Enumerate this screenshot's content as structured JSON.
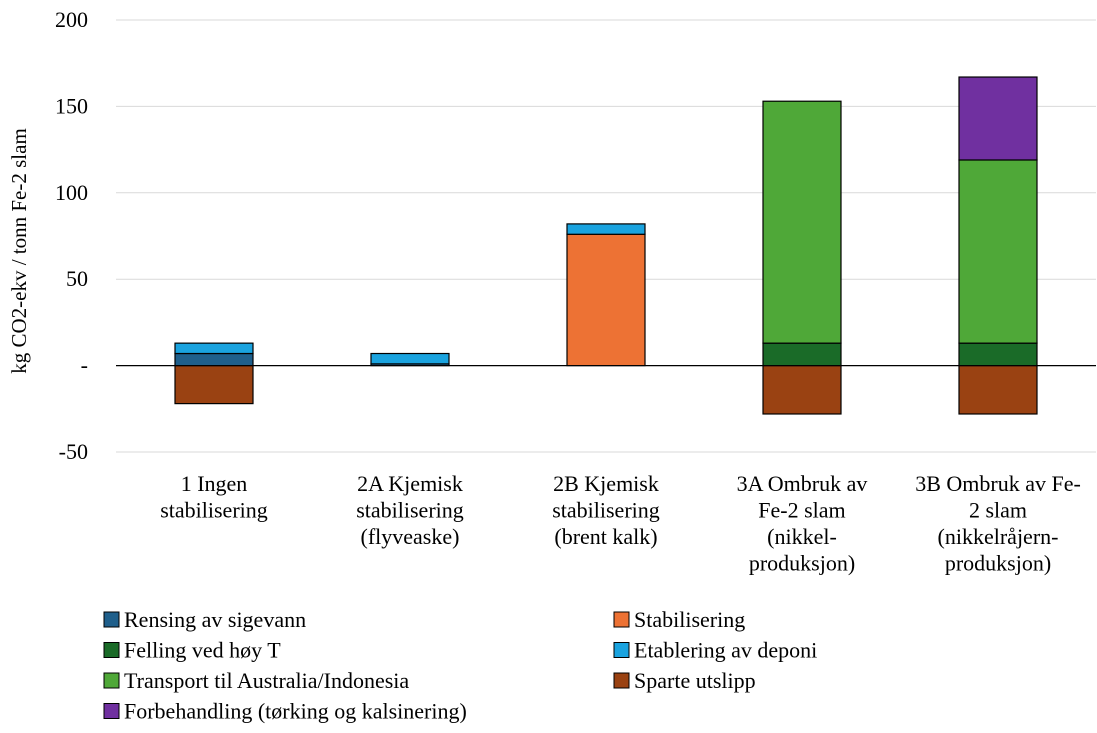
{
  "chart_data": {
    "type": "bar",
    "stacked": true,
    "title": "",
    "xlabel": "",
    "ylabel": "kg CO2-ekv / tonn Fe-2 slam",
    "ylim": [
      -50,
      200
    ],
    "yticks": [
      200,
      150,
      100,
      50,
      0,
      -50
    ],
    "ytick_labels": [
      "200",
      "150",
      "100",
      "50",
      "-",
      "-50"
    ],
    "grid": true,
    "legend_position": "bottom",
    "categories": [
      [
        "1 Ingen",
        "stabilisering"
      ],
      [
        "2A Kjemisk",
        "stabilisering",
        "(flyveaske)"
      ],
      [
        "2B Kjemisk",
        "stabilisering",
        "(brent kalk)"
      ],
      [
        "3A Ombruk av",
        "Fe-2 slam",
        "(nikkel-",
        "produksjon)"
      ],
      [
        "3B Ombruk av Fe-",
        "2 slam",
        "(nikkelråjern-",
        "produksjon)"
      ]
    ],
    "series": [
      {
        "name": "Rensing av sigevann",
        "color": "#1f5f8b",
        "values": [
          7,
          1,
          0,
          0,
          0
        ]
      },
      {
        "name": "Stabilisering",
        "color": "#ed7234",
        "values": [
          0,
          0,
          76,
          0,
          0
        ]
      },
      {
        "name": "Felling ved høy T",
        "color": "#1a6b28",
        "values": [
          0,
          0,
          0,
          13,
          13
        ]
      },
      {
        "name": "Etablering av deponi",
        "color": "#1aa3df",
        "values": [
          6,
          6,
          6,
          0,
          0
        ]
      },
      {
        "name": "Transport til Australia/Indonesia",
        "color": "#4fa838",
        "values": [
          0,
          0,
          0,
          140,
          106
        ]
      },
      {
        "name": "Sparte utslipp",
        "color": "#9a4212",
        "values": [
          -22,
          0,
          0,
          -28,
          -28
        ]
      },
      {
        "name": "Forbehandling (tørking og kalsinering)",
        "color": "#7030a0",
        "values": [
          0,
          0,
          0,
          0,
          48
        ]
      }
    ]
  }
}
